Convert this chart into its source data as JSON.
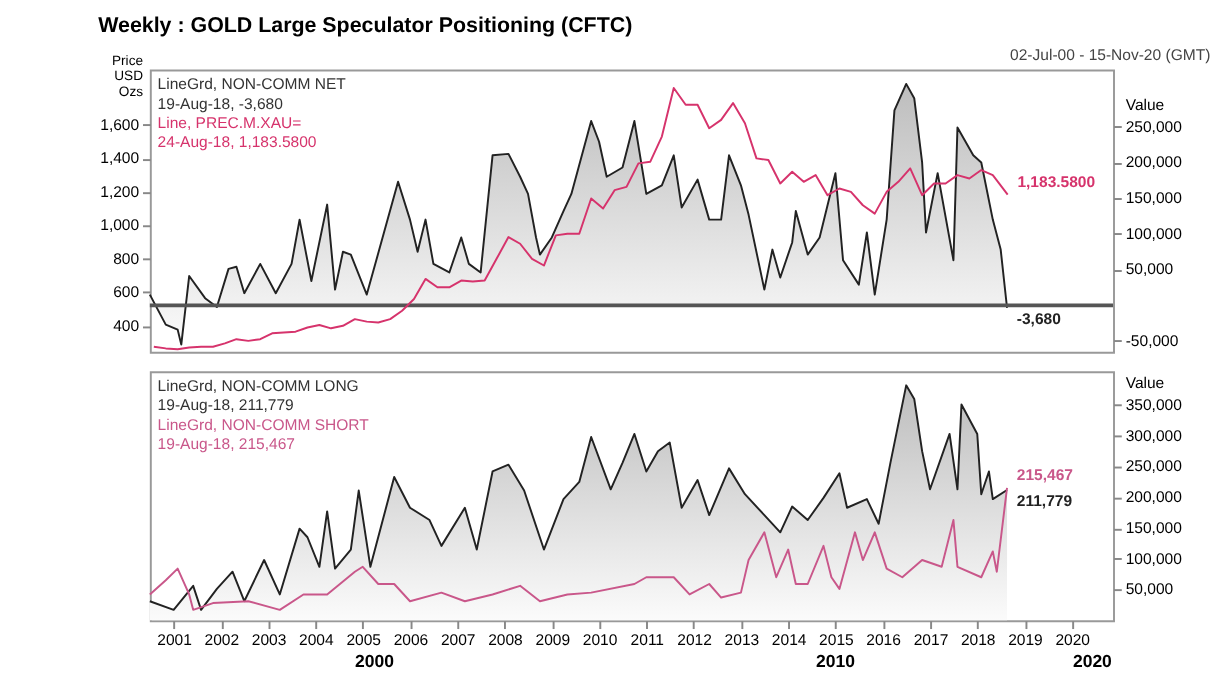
{
  "chart_data": [
    {
      "type": "line",
      "title": "Weekly : GOLD Large Speculator Positioning (CFTC)",
      "subtitle": "02-Jul-00 - 15-Nov-20 (GMT)",
      "ylabel": "Price USD Ozs",
      "y2label": "Value",
      "xlim": [
        "2000-07-01",
        "2020-11-15"
      ],
      "ylim": [
        245,
        1930
      ],
      "yticks": [
        {
          "value": 400,
          "label": "400"
        },
        {
          "value": 600,
          "label": "600"
        },
        {
          "value": 800,
          "label": "800"
        },
        {
          "value": 1000,
          "label": "1,000"
        },
        {
          "value": 1200,
          "label": "1,200"
        },
        {
          "value": 1400,
          "label": "1,400"
        },
        {
          "value": 1600,
          "label": "1,600"
        }
      ],
      "y2lim": [
        -65000,
        330000
      ],
      "y2ticks": [
        {
          "value": -50000,
          "label": "-50,000"
        },
        {
          "value": 50000,
          "label": "50,000"
        },
        {
          "value": 100000,
          "label": "100,000"
        },
        {
          "value": 150000,
          "label": "150,000"
        },
        {
          "value": 200000,
          "label": "200,000"
        },
        {
          "value": 250000,
          "label": "250,000"
        }
      ],
      "tick_labels": "y",
      "legend": "top left",
      "line_style": "solid",
      "ref_lines": [
        {
          "axis": "y2",
          "value": 0,
          "color": "#555555"
        }
      ],
      "annotations": [
        "19-Aug-18, -3,680",
        "24-Aug-18, 1,183.5800"
      ],
      "series": [
        {
          "name": "LineGrd, NON-COMM NET",
          "type": "area",
          "axis": "y2",
          "color": "#222222",
          "x": [
            "2000-07",
            "2000-11",
            "2001-02",
            "2001-03",
            "2001-05",
            "2001-09",
            "2001-12",
            "2002-03",
            "2002-05",
            "2002-07",
            "2002-11",
            "2003-03",
            "2003-07",
            "2003-09",
            "2003-12",
            "2004-04",
            "2004-06",
            "2004-08",
            "2004-10",
            "2005-02",
            "2005-10",
            "2006-01",
            "2006-03",
            "2006-05",
            "2006-07",
            "2006-11",
            "2007-02",
            "2007-04",
            "2007-07",
            "2007-10",
            "2008-02",
            "2008-05",
            "2008-07",
            "2008-09",
            "2008-10",
            "2009-01",
            "2009-04",
            "2009-06",
            "2009-11",
            "2010-01",
            "2010-03",
            "2010-07",
            "2010-10",
            "2011-01",
            "2011-05",
            "2011-08",
            "2011-10",
            "2012-02",
            "2012-05",
            "2012-08",
            "2012-10",
            "2013-01",
            "2013-03",
            "2013-07",
            "2013-09",
            "2013-11",
            "2014-02",
            "2014-03",
            "2014-06",
            "2014-09",
            "2015-01",
            "2015-03",
            "2015-07",
            "2015-09",
            "2015-11",
            "2016-02",
            "2016-04",
            "2016-07",
            "2016-09",
            "2016-11",
            "2016-12",
            "2017-03",
            "2017-07",
            "2017-08",
            "2017-12",
            "2018-02",
            "2018-05",
            "2018-07",
            "2018-08-19"
          ],
          "values": [
            15000,
            -27000,
            -34000,
            -55000,
            41000,
            10000,
            -2400,
            51000,
            54000,
            17000,
            58000,
            17000,
            58000,
            120000,
            34000,
            141000,
            22000,
            75000,
            71000,
            15000,
            173000,
            120000,
            75000,
            120000,
            58000,
            46000,
            95000,
            58000,
            46000,
            210000,
            212000,
            180000,
            156000,
            95000,
            71000,
            95000,
            132000,
            156000,
            258000,
            229000,
            180000,
            193000,
            258000,
            156000,
            168000,
            210000,
            137000,
            176000,
            120000,
            120000,
            210000,
            168000,
            127000,
            22000,
            78000,
            39000,
            88000,
            132000,
            71000,
            95000,
            185000,
            63000,
            29000,
            102000,
            15000,
            120000,
            273000,
            310000,
            290000,
            200000,
            102000,
            185000,
            63000,
            249000,
            210000,
            200000,
            120000,
            78000,
            -3680
          ],
          "value_labels": [
            null,
            null,
            null,
            null,
            null,
            null,
            null,
            null,
            null,
            null,
            null,
            null,
            null,
            null,
            null,
            null,
            null,
            null,
            null,
            null,
            null,
            null,
            null,
            null,
            null,
            null,
            null,
            null,
            null,
            null,
            null,
            null,
            null,
            null,
            null,
            null,
            null,
            null,
            null,
            null,
            null,
            null,
            null,
            null,
            null,
            null,
            null,
            null,
            null,
            null,
            null,
            null,
            null,
            null,
            null,
            null,
            null,
            null,
            null,
            null,
            null,
            null,
            null,
            null,
            null,
            null,
            null,
            null,
            null,
            null,
            null,
            null,
            null,
            null,
            null,
            null,
            null,
            null,
            "-3,680"
          ]
        },
        {
          "name": "Line, PREC.M.XAU=",
          "type": "line",
          "color": "#d6336c",
          "x": [
            "2000-08",
            "2000-11",
            "2001-02",
            "2001-05",
            "2001-08",
            "2001-11",
            "2002-02",
            "2002-05",
            "2002-08",
            "2002-11",
            "2003-02",
            "2003-05",
            "2003-08",
            "2003-11",
            "2004-02",
            "2004-05",
            "2004-08",
            "2004-11",
            "2005-02",
            "2005-05",
            "2005-08",
            "2005-11",
            "2006-02",
            "2006-05",
            "2006-08",
            "2006-11",
            "2007-02",
            "2007-05",
            "2007-08",
            "2007-11",
            "2008-02",
            "2008-05",
            "2008-08",
            "2008-11",
            "2009-02",
            "2009-05",
            "2009-08",
            "2009-11",
            "2010-02",
            "2010-05",
            "2010-08",
            "2010-11",
            "2011-02",
            "2011-05",
            "2011-08",
            "2011-11",
            "2012-02",
            "2012-05",
            "2012-08",
            "2012-11",
            "2013-02",
            "2013-05",
            "2013-08",
            "2013-11",
            "2014-02",
            "2014-05",
            "2014-08",
            "2014-11",
            "2015-02",
            "2015-05",
            "2015-08",
            "2015-11",
            "2016-02",
            "2016-05",
            "2016-08",
            "2016-11",
            "2017-02",
            "2017-05",
            "2017-08",
            "2017-11",
            "2018-02",
            "2018-05",
            "2018-08-24"
          ],
          "values": [
            275,
            265,
            260,
            270,
            275,
            275,
            295,
            320,
            310,
            320,
            355,
            360,
            365,
            390,
            405,
            385,
            400,
            440,
            425,
            420,
            440,
            490,
            560,
            680,
            630,
            630,
            670,
            665,
            670,
            800,
            930,
            890,
            800,
            760,
            940,
            950,
            950,
            1160,
            1100,
            1210,
            1230,
            1370,
            1380,
            1530,
            1820,
            1720,
            1720,
            1580,
            1630,
            1730,
            1610,
            1400,
            1390,
            1250,
            1320,
            1260,
            1300,
            1180,
            1220,
            1200,
            1120,
            1070,
            1200,
            1260,
            1340,
            1180,
            1250,
            1250,
            1300,
            1280,
            1330,
            1300,
            1183.58
          ],
          "value_labels": [
            null,
            null,
            null,
            null,
            null,
            null,
            null,
            null,
            null,
            null,
            null,
            null,
            null,
            null,
            null,
            null,
            null,
            null,
            null,
            null,
            null,
            null,
            null,
            null,
            null,
            null,
            null,
            null,
            null,
            null,
            null,
            null,
            null,
            null,
            null,
            null,
            null,
            null,
            null,
            null,
            null,
            null,
            null,
            null,
            null,
            null,
            null,
            null,
            null,
            null,
            null,
            null,
            null,
            null,
            null,
            null,
            null,
            null,
            null,
            null,
            null,
            null,
            null,
            null,
            null,
            null,
            null,
            null,
            null,
            null,
            null,
            null,
            "1,183.5800"
          ]
        }
      ]
    },
    {
      "type": "line",
      "y2label": "Value",
      "xlim": [
        "2000-07-01",
        "2020-11-15"
      ],
      "xticks": [
        "2001",
        "2002",
        "2003",
        "2004",
        "2005",
        "2006",
        "2007",
        "2008",
        "2009",
        "2010",
        "2011",
        "2012",
        "2013",
        "2014",
        "2015",
        "2016",
        "2017",
        "2018",
        "2019",
        "2020"
      ],
      "y2lim": [
        0,
        405000
      ],
      "y2ticks": [
        {
          "value": 50000,
          "label": "50,000"
        },
        {
          "value": 100000,
          "label": "100,000"
        },
        {
          "value": 150000,
          "label": "150,000"
        },
        {
          "value": 200000,
          "label": "200,000"
        },
        {
          "value": 250000,
          "label": "250,000"
        },
        {
          "value": 300000,
          "label": "300,000"
        },
        {
          "value": 350000,
          "label": "350,000"
        }
      ],
      "legend": "top left",
      "line_style": "solid",
      "annotations": [
        "19-Aug-18, 211,779",
        "19-Aug-18, 215,467",
        "2000",
        "2010",
        "2020"
      ],
      "series": [
        {
          "name": "LineGrd, NON-COMM LONG",
          "type": "area",
          "axis": "y2",
          "color": "#222222",
          "x": [
            "2000-07",
            "2001-01",
            "2001-06",
            "2001-08",
            "2001-12",
            "2002-04",
            "2002-07",
            "2002-12",
            "2003-04",
            "2003-09",
            "2003-11",
            "2004-02",
            "2004-04",
            "2004-06",
            "2004-10",
            "2004-12",
            "2005-03",
            "2005-09",
            "2006-01",
            "2006-06",
            "2006-09",
            "2007-03",
            "2007-06",
            "2007-10",
            "2008-02",
            "2008-06",
            "2008-11",
            "2009-04",
            "2009-08",
            "2009-11",
            "2010-04",
            "2010-07",
            "2010-10",
            "2011-01",
            "2011-04",
            "2011-07",
            "2011-10",
            "2012-02",
            "2012-05",
            "2012-10",
            "2013-02",
            "2013-07",
            "2013-11",
            "2014-02",
            "2014-06",
            "2014-10",
            "2015-02",
            "2015-04",
            "2015-09",
            "2015-12",
            "2016-03",
            "2016-07",
            "2016-09",
            "2016-11",
            "2017-01",
            "2017-06",
            "2017-08",
            "2017-09",
            "2018-01",
            "2018-02",
            "2018-04",
            "2018-05",
            "2018-08-19"
          ],
          "values": [
            31000,
            17000,
            56000,
            17000,
            51000,
            79000,
            31000,
            98000,
            42000,
            149000,
            135000,
            87000,
            177000,
            84000,
            115000,
            211000,
            87000,
            233000,
            183000,
            163000,
            121000,
            183000,
            115000,
            242000,
            253000,
            211000,
            115000,
            197000,
            225000,
            298000,
            213000,
            256000,
            303000,
            242000,
            275000,
            289000,
            183000,
            228000,
            171000,
            247000,
            205000,
            171000,
            143000,
            185000,
            163000,
            199000,
            239000,
            183000,
            197000,
            157000,
            256000,
            382000,
            360000,
            275000,
            213000,
            303000,
            213000,
            351000,
            303000,
            205000,
            242000,
            197000,
            211779
          ],
          "value_labels": [
            null,
            null,
            null,
            null,
            null,
            null,
            null,
            null,
            null,
            null,
            null,
            null,
            null,
            null,
            null,
            null,
            null,
            null,
            null,
            null,
            null,
            null,
            null,
            null,
            null,
            null,
            null,
            null,
            null,
            null,
            null,
            null,
            null,
            null,
            null,
            null,
            null,
            null,
            null,
            null,
            null,
            null,
            null,
            null,
            null,
            null,
            null,
            null,
            null,
            null,
            null,
            null,
            null,
            null,
            null,
            null,
            null,
            null,
            null,
            null,
            null,
            null,
            "211,779"
          ]
        },
        {
          "name": "LineGrd, NON-COMM SHORT",
          "type": "line",
          "axis": "y2",
          "color": "#c9578a",
          "x": [
            "2000-07",
            "2000-11",
            "2001-02",
            "2001-05",
            "2001-06",
            "2001-11",
            "2002-08",
            "2003-04",
            "2003-10",
            "2004-04",
            "2004-11",
            "2005-01",
            "2005-05",
            "2005-09",
            "2006-01",
            "2006-09",
            "2007-03",
            "2007-10",
            "2008-05",
            "2008-10",
            "2009-05",
            "2009-11",
            "2010-10",
            "2011-01",
            "2011-08",
            "2011-12",
            "2012-05",
            "2012-08",
            "2013-01",
            "2013-03",
            "2013-07",
            "2013-10",
            "2014-01",
            "2014-03",
            "2014-06",
            "2014-10",
            "2014-12",
            "2015-02",
            "2015-06",
            "2015-08",
            "2015-11",
            "2016-02",
            "2016-06",
            "2016-11",
            "2017-04",
            "2017-07",
            "2017-08",
            "2018-02",
            "2018-05",
            "2018-06",
            "2018-08-19"
          ],
          "values": [
            42000,
            65000,
            84000,
            42000,
            17000,
            28000,
            31000,
            17000,
            42000,
            42000,
            79000,
            87000,
            59000,
            59000,
            31000,
            45000,
            31000,
            42000,
            56000,
            31000,
            42000,
            45000,
            59000,
            70000,
            70000,
            42000,
            59000,
            37000,
            45000,
            98000,
            143000,
            70000,
            115000,
            59000,
            59000,
            121000,
            70000,
            51000,
            143000,
            98000,
            143000,
            84000,
            70000,
            98000,
            87000,
            163000,
            87000,
            70000,
            112000,
            79000,
            215467
          ],
          "value_labels": [
            null,
            null,
            null,
            null,
            null,
            null,
            null,
            null,
            null,
            null,
            null,
            null,
            null,
            null,
            null,
            null,
            null,
            null,
            null,
            null,
            null,
            null,
            null,
            null,
            null,
            null,
            null,
            null,
            null,
            null,
            null,
            null,
            null,
            null,
            null,
            null,
            null,
            null,
            null,
            null,
            null,
            null,
            null,
            null,
            null,
            null,
            null,
            null,
            null,
            null,
            "215,467"
          ]
        }
      ]
    }
  ]
}
